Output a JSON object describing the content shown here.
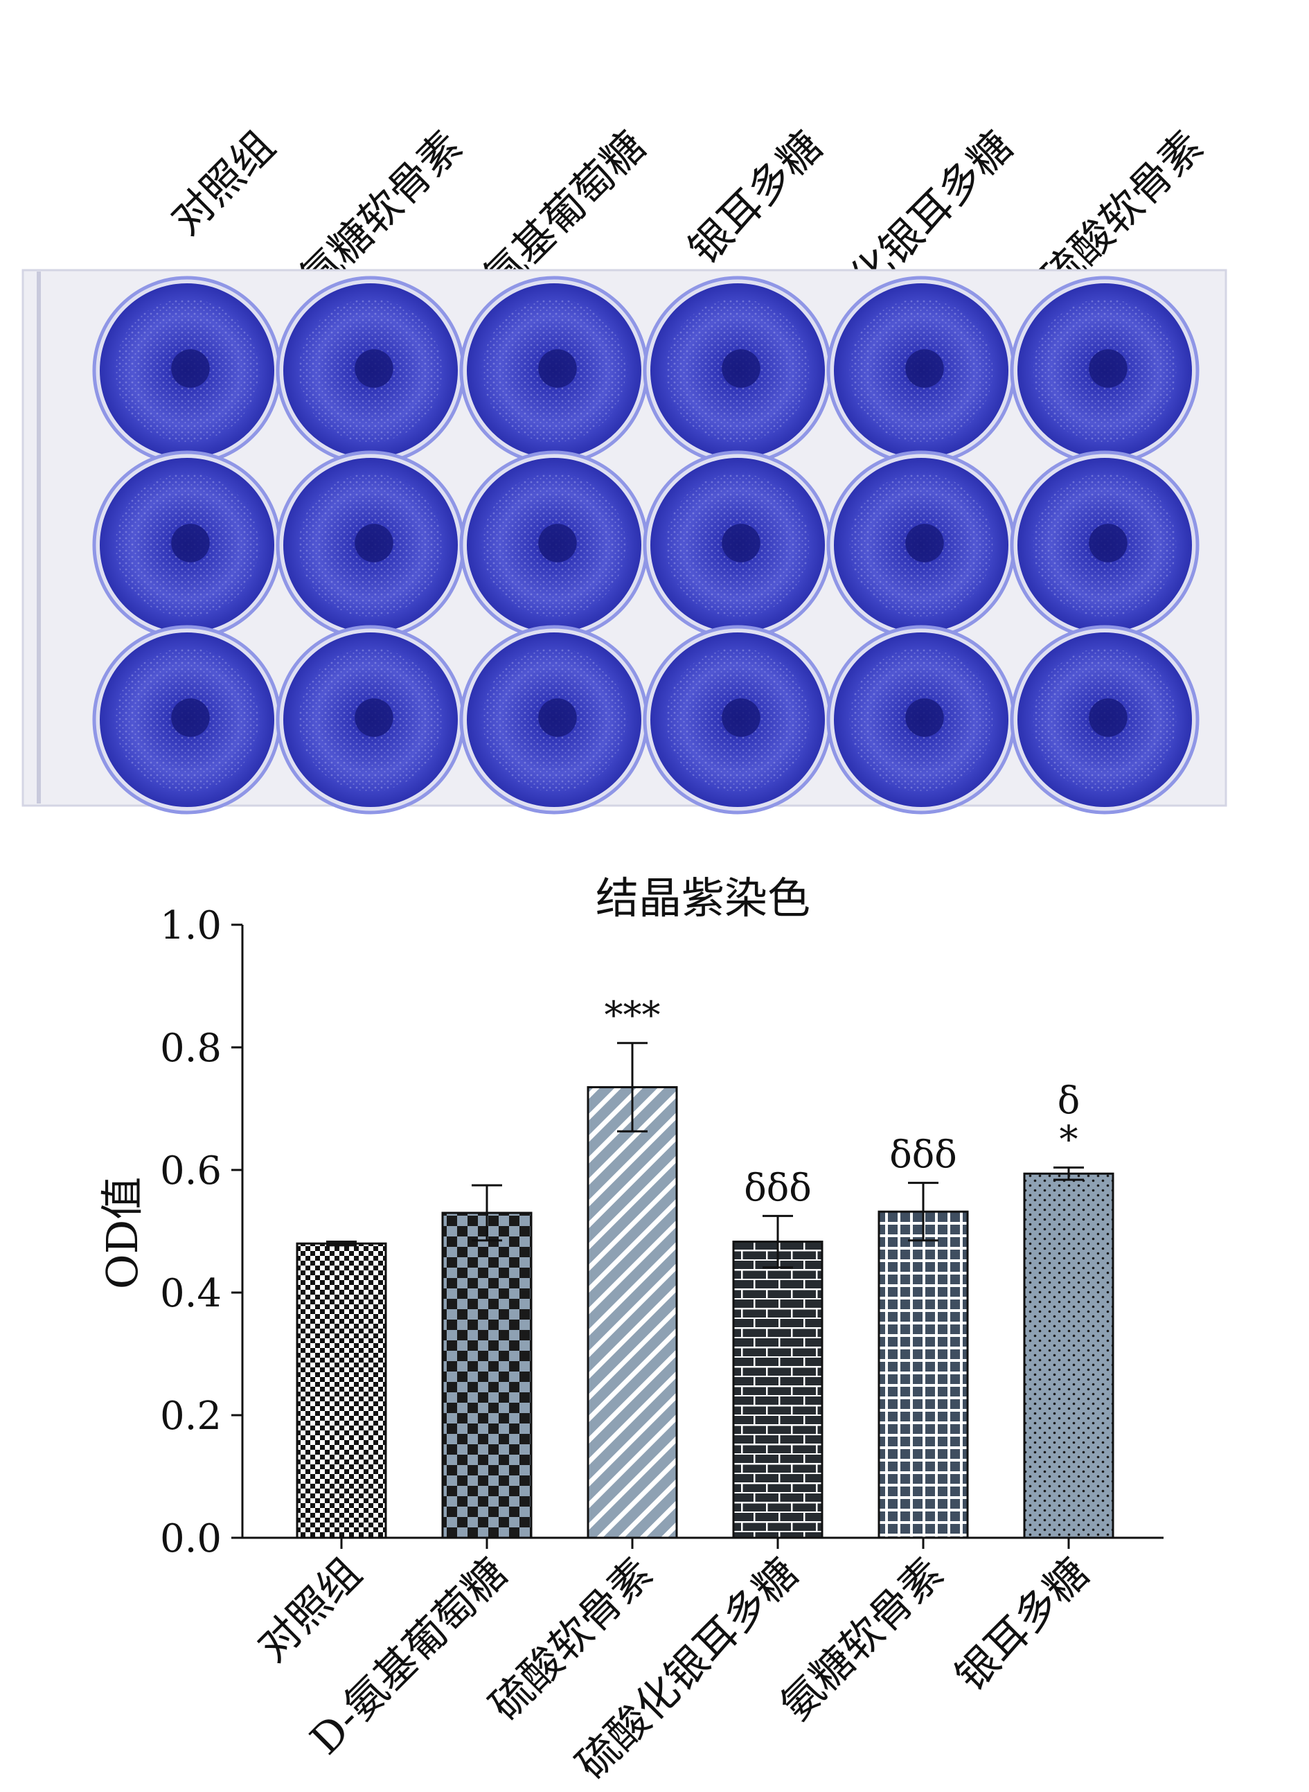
{
  "top_labels": [
    "对照组",
    "氨糖软骨素",
    "D-氨基葡萄糖",
    "银耳多糖",
    "硫酸化银耳多糖",
    "硫酸软骨素"
  ],
  "plate": {
    "rows": 3,
    "cols": 6,
    "stain_color": "#3a3ec8",
    "rim_color": "#8f96e6"
  },
  "chart_data": {
    "type": "bar",
    "title": "结晶紫染色",
    "ylabel": "OD值",
    "xlabel": "",
    "ylim": [
      0,
      1.0
    ],
    "yticks": [
      "0.0",
      "0.2",
      "0.4",
      "0.6",
      "0.8",
      "1.0"
    ],
    "grid": false,
    "categories": [
      "对照组",
      "D-氨基葡萄糖",
      "硫酸软骨素",
      "硫酸化银耳多糖",
      "氨糖软骨素",
      "银耳多糖"
    ],
    "values": [
      0.48,
      0.53,
      0.735,
      0.483,
      0.532,
      0.594
    ],
    "errors": [
      0.003,
      0.045,
      0.072,
      0.042,
      0.047,
      0.01
    ],
    "annotations": [
      [],
      [],
      [
        "***"
      ],
      [
        "δδδ"
      ],
      [
        "δδδ"
      ],
      [
        "δ",
        "*"
      ]
    ],
    "patterns": [
      "checker-fine",
      "checker-coarse",
      "diagonal",
      "brick",
      "grid",
      "dots"
    ],
    "bar_colors": [
      "#ffffff",
      "#8ea1b3",
      "#8ea1b3",
      "#262b30",
      "#3f4e60",
      "#8ea1b3"
    ]
  }
}
